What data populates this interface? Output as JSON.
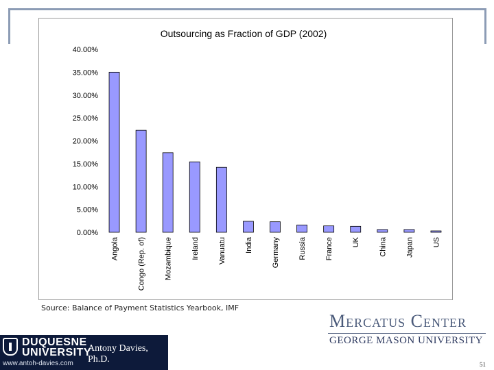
{
  "chart_data": {
    "type": "bar",
    "title": "Outsourcing as Fraction of GDP (2002)",
    "categories": [
      "Angola",
      "Congo (Rep. of)",
      "Mozambique",
      "Ireland",
      "Vanuatu",
      "India",
      "Germany",
      "Russia",
      "France",
      "UK",
      "China",
      "Japan",
      "US"
    ],
    "values": [
      35.0,
      22.3,
      17.4,
      15.4,
      14.2,
      2.4,
      2.3,
      1.6,
      1.4,
      1.3,
      0.6,
      0.6,
      0.3
    ],
    "ylim": [
      0,
      40
    ],
    "yticks": [
      "0.00%",
      "5.00%",
      "10.00%",
      "15.00%",
      "20.00%",
      "25.00%",
      "30.00%",
      "35.00%",
      "40.00%"
    ],
    "grid": false,
    "bar_color": "#9999ff",
    "bar_edge_color": "#000000"
  },
  "footer": {
    "source": "Source: Balance of Payment Statistics Yearbook, IMF",
    "mercatus": "Mercatus Center",
    "gmu": "GEORGE MASON UNIVERSITY",
    "logo_line1": "DUQUESNE",
    "logo_line2": "UNIVERSITY",
    "logo_person": "Antony Davies, Ph.D.",
    "logo_url": "www.antoh-davies.com",
    "page_number": "51"
  }
}
